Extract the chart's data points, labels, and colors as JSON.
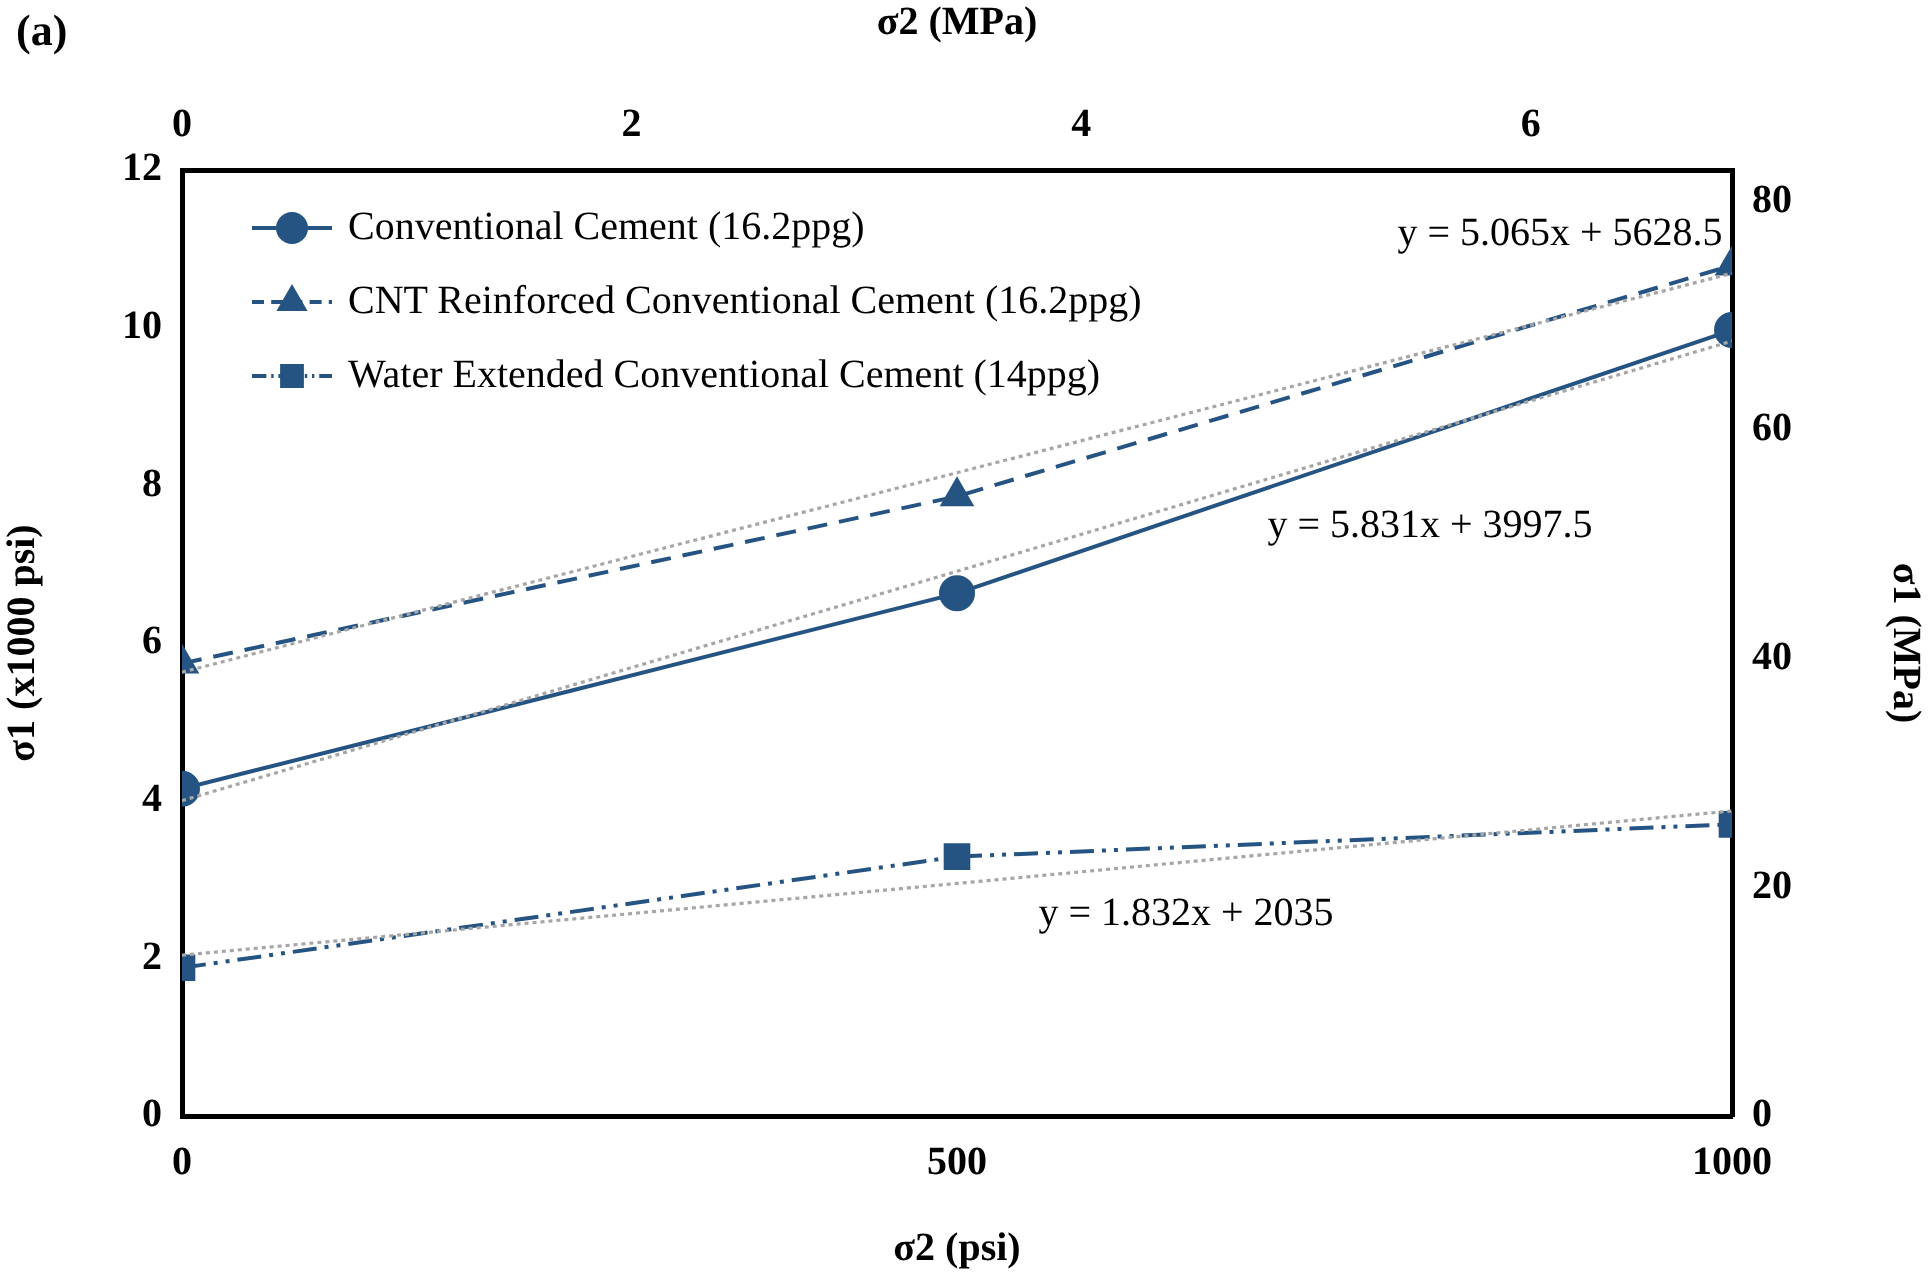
{
  "chart_data": {
    "type": "line",
    "xlabel": "σ2 (psi)",
    "ylabel": "σ1 (x1000 psi)",
    "x2label": "σ2 (MPa)",
    "y2label": "σ1 (MPa)",
    "x": [
      0,
      500,
      1000
    ],
    "xlim": [
      0,
      1000
    ],
    "xticks": [
      0,
      500,
      1000
    ],
    "ylim": [
      0,
      12
    ],
    "yticks": [
      0,
      2,
      4,
      6,
      8,
      10,
      12
    ],
    "x2lim": [
      0,
      6.895
    ],
    "x2ticks": [
      0,
      2,
      4,
      6
    ],
    "y2lim": [
      0,
      82.74
    ],
    "y2ticks": [
      0,
      20,
      40,
      60,
      80
    ],
    "grid": false,
    "legend": "top left",
    "series": [
      {
        "name": "Conventional Cement (16.2ppg)",
        "color": "#255483",
        "values": [
          4.15,
          6.63,
          9.97
        ],
        "marker": "circle",
        "line_style": "solid"
      },
      {
        "name": "CNT Reinforced Conventional Cement (16.2ppg)",
        "color": "#255483",
        "values": [
          5.74,
          7.86,
          10.79
        ],
        "marker": "triangle",
        "line_style": "dashed"
      },
      {
        "name": "Water Extended Conventional Cement (14ppg)",
        "color": "#255483",
        "values": [
          1.88,
          3.29,
          3.7
        ],
        "marker": "square",
        "line_style": "dashdot"
      },
      {
        "type": "line",
        "values": [
          5.63,
          8.16,
          10.69
        ],
        "color": "#a6a6a6",
        "marker": "none",
        "line_style": "dotted"
      },
      {
        "type": "line",
        "values": [
          4.0,
          6.91,
          9.83
        ],
        "color": "#a6a6a6",
        "marker": "none",
        "line_style": "dotted"
      },
      {
        "type": "line",
        "values": [
          2.04,
          2.95,
          3.87
        ],
        "color": "#a6a6a6",
        "marker": "none",
        "line_style": "dotted"
      }
    ],
    "annotations": [
      "(a)",
      "y = 5.065x + 5628.5",
      "y = 5.831x + 3997.5",
      "y = 1.832x + 2035"
    ]
  }
}
